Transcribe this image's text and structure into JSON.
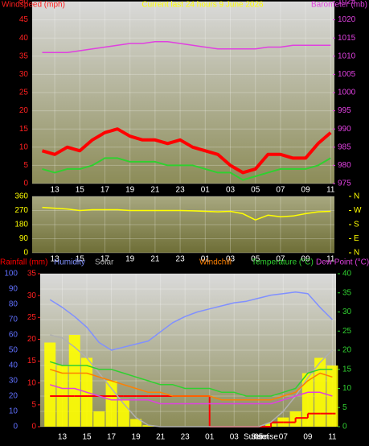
{
  "chart_data": [
    {
      "type": "line",
      "title": "Current last 24 hours 9 June 2026",
      "ylabel": "Windspeed (mph)",
      "y2label": "Barometer (mb)",
      "ycolor": "#ff2020",
      "y2color": "#e040e0",
      "titlecolor": "#ffff00",
      "grid": true,
      "x": [
        12,
        13,
        14,
        15,
        16,
        17,
        18,
        19,
        20,
        21,
        22,
        23,
        24,
        25,
        26,
        27,
        28,
        29,
        30,
        31,
        32,
        33,
        34,
        35
      ],
      "xlim": [
        11.2,
        35.3
      ],
      "xticks": [
        13,
        15,
        17,
        19,
        21,
        23,
        {
          "value": 25,
          "label": "01"
        },
        {
          "value": 27,
          "label": "03"
        },
        {
          "value": 29,
          "label": "05"
        },
        {
          "value": 31,
          "label": "07"
        },
        {
          "value": 33,
          "label": "09"
        },
        {
          "value": 35,
          "label": "11"
        }
      ],
      "ylim": [
        0,
        50
      ],
      "yticks": [
        0,
        5,
        10,
        15,
        20,
        25,
        30,
        35,
        40,
        45,
        50
      ],
      "y2lim": [
        975,
        1025
      ],
      "y2ticks": [
        975,
        980,
        985,
        990,
        995,
        1000,
        1005,
        1010,
        1015,
        1020,
        1025
      ],
      "series": [
        {
          "color": "#ff0000",
          "width": 4,
          "values": [
            9,
            8,
            10,
            9,
            12,
            14,
            15,
            13,
            12,
            12,
            11,
            12,
            10,
            9,
            8,
            5,
            3,
            4,
            8,
            8,
            7,
            7,
            11,
            14
          ]
        },
        {
          "color": "#30d030",
          "width": 2,
          "values": [
            4,
            3,
            4,
            4,
            5,
            7,
            7,
            6,
            6,
            6,
            5,
            5,
            5,
            4,
            3,
            3,
            1,
            2,
            3,
            4,
            4,
            4,
            5,
            7
          ]
        },
        {
          "color": "#e040e0",
          "width": 1.5,
          "axis": "y2",
          "values": [
            1011,
            1011,
            1011,
            1011.5,
            1012,
            1012.5,
            1013,
            1013.5,
            1013.5,
            1014,
            1014,
            1013.5,
            1013,
            1012.5,
            1012,
            1012,
            1012,
            1012,
            1012.5,
            1012.5,
            1013,
            1013,
            1013,
            1013
          ]
        }
      ]
    },
    {
      "type": "line",
      "ycolor": "#ffff00",
      "y2color": "#ffff00",
      "grid": true,
      "x": [
        12,
        13,
        14,
        15,
        16,
        17,
        18,
        19,
        20,
        21,
        22,
        23,
        24,
        25,
        26,
        27,
        28,
        29,
        30,
        31,
        32,
        33,
        34,
        35
      ],
      "xlim": [
        11.2,
        35.3
      ],
      "xticks": [
        13,
        15,
        17,
        19,
        21,
        23,
        {
          "value": 25,
          "label": "01"
        },
        {
          "value": 27,
          "label": "03"
        },
        {
          "value": 29,
          "label": "05"
        },
        {
          "value": 31,
          "label": "07"
        },
        {
          "value": 33,
          "label": "09"
        },
        {
          "value": 35,
          "label": "11"
        }
      ],
      "ylim": [
        0,
        360
      ],
      "yticks": [
        0,
        90,
        180,
        270,
        360
      ],
      "y2lim": [
        0,
        360
      ],
      "y2ticks": [
        {
          "value": 360,
          "label": "N"
        },
        {
          "value": 270,
          "label": "W"
        },
        {
          "value": 180,
          "label": "S"
        },
        {
          "value": 90,
          "label": "E"
        },
        {
          "value": 0,
          "label": "N"
        }
      ],
      "series": [
        {
          "color": "#ffff00",
          "width": 1.5,
          "values": [
            290,
            285,
            280,
            270,
            275,
            275,
            275,
            270,
            270,
            270,
            270,
            270,
            268,
            265,
            262,
            265,
            250,
            210,
            240,
            230,
            235,
            250,
            262,
            265
          ]
        }
      ]
    },
    {
      "type": "line",
      "ycolor": "#6070ff",
      "y2color": "#ff2020",
      "y3color": "#30d030",
      "grid": true,
      "x": [
        12,
        13,
        14,
        15,
        16,
        17,
        18,
        19,
        20,
        21,
        22,
        23,
        24,
        25,
        26,
        27,
        28,
        29,
        30,
        31,
        32,
        33,
        34,
        35
      ],
      "xlim": [
        11.2,
        35.3
      ],
      "xticks": [
        13,
        15,
        17,
        19,
        21,
        23,
        {
          "value": 25,
          "label": "01"
        },
        {
          "value": 27,
          "label": "03"
        },
        {
          "value": 29,
          "label": "05"
        },
        {
          "value": 31,
          "label": "07"
        },
        {
          "value": 33,
          "label": "09"
        },
        {
          "value": 35,
          "label": "11"
        }
      ],
      "ylim": [
        0,
        100
      ],
      "yticks": [
        0,
        10,
        20,
        30,
        40,
        50,
        60,
        70,
        80,
        90,
        100
      ],
      "y2lim": [
        0,
        35
      ],
      "y2ticks": [
        0,
        5,
        10,
        15,
        20,
        25,
        30,
        35
      ],
      "y3lim": [
        0,
        40
      ],
      "y3ticks": [
        0,
        5,
        10,
        15,
        20,
        25,
        30,
        35,
        40
      ],
      "annotations": [
        "Sunset",
        "Sunrise"
      ],
      "series": [
        {
          "color": "#ffff00",
          "style": "bar",
          "values": [
            55,
            40,
            60,
            45,
            10,
            30,
            18,
            5,
            1,
            0,
            0,
            0,
            0,
            0,
            0,
            0,
            0,
            0,
            2,
            6,
            10,
            35,
            45,
            40
          ]
        },
        {
          "name": "Rainfall (mm)",
          "color": "#ff0000",
          "style": "step",
          "axis": "y2",
          "values": [
            7,
            7,
            7,
            7,
            7,
            7,
            7,
            7,
            7,
            7,
            7,
            7,
            7,
            0,
            0,
            0,
            0,
            0,
            1,
            1,
            2,
            3,
            3,
            3
          ]
        },
        {
          "name": "Humidity",
          "color": "#8090ff",
          "values": [
            83,
            78,
            72,
            65,
            55,
            50,
            52,
            54,
            56,
            62,
            68,
            72,
            75,
            77,
            79,
            81,
            82,
            84,
            86,
            87,
            88,
            87,
            78,
            70
          ]
        },
        {
          "name": "Solar",
          "color": "#b0b0b0",
          "values": [
            60,
            58,
            52,
            45,
            35,
            25,
            15,
            6,
            1,
            0,
            0,
            0,
            0,
            0,
            0,
            0,
            0,
            0,
            3,
            10,
            20,
            32,
            42,
            50
          ]
        },
        {
          "name": "Windchill",
          "color": "#ff8000",
          "axis": "y3",
          "values": [
            15,
            14,
            14,
            14,
            13,
            12,
            11,
            10,
            9,
            9,
            8,
            8,
            8,
            8,
            7,
            7,
            7,
            7,
            7,
            8,
            9,
            12,
            14,
            13
          ]
        },
        {
          "name": "Temperature (°C)",
          "color": "#30d030",
          "axis": "y3",
          "values": [
            17,
            16,
            16,
            16,
            15,
            15,
            14,
            13,
            12,
            11,
            11,
            10,
            10,
            10,
            9,
            9,
            8,
            8,
            8,
            9,
            10,
            14,
            15,
            15
          ]
        },
        {
          "name": "Dew Point (°C)",
          "color": "#e040e0",
          "axis": "y3",
          "values": [
            11,
            10,
            10,
            9,
            8,
            7,
            7,
            7,
            7,
            6,
            6,
            6,
            6,
            6,
            6,
            6,
            6,
            6,
            6,
            7,
            8,
            9,
            9,
            8
          ]
        }
      ]
    }
  ]
}
